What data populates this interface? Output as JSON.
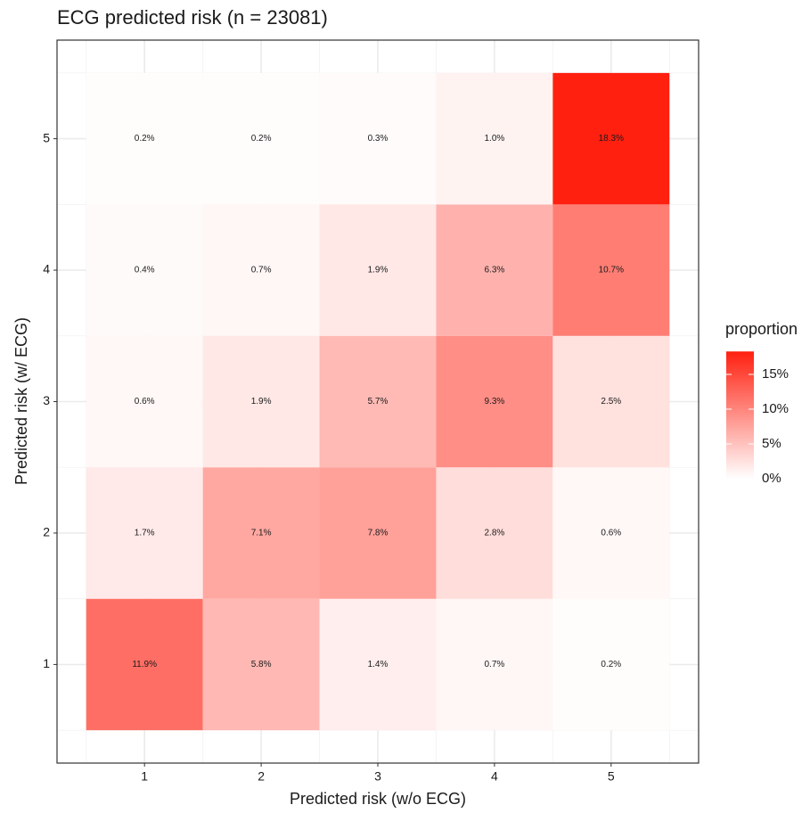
{
  "chart_data": {
    "type": "heatmap",
    "title": "ECG predicted risk (n = 23081)",
    "x_label": "Predicted risk (w/o ECG)",
    "y_label": "Predicted risk (w/ ECG)",
    "x": [
      1,
      2,
      3,
      4,
      5
    ],
    "y": [
      1,
      2,
      3,
      4,
      5
    ],
    "values": [
      [
        11.9,
        5.8,
        1.4,
        0.7,
        0.2
      ],
      [
        1.7,
        7.1,
        7.8,
        2.8,
        0.6
      ],
      [
        0.6,
        1.9,
        5.7,
        9.3,
        2.5
      ],
      [
        0.4,
        0.7,
        1.9,
        6.3,
        10.7
      ],
      [
        0.2,
        0.2,
        0.3,
        1.0,
        18.3
      ]
    ],
    "value_labels": [
      [
        "11.9%",
        "5.8%",
        "1.4%",
        "0.7%",
        "0.2%"
      ],
      [
        "1.7%",
        "7.1%",
        "7.8%",
        "2.8%",
        "0.6%"
      ],
      [
        "0.6%",
        "1.9%",
        "5.7%",
        "9.3%",
        "2.5%"
      ],
      [
        "0.4%",
        "0.7%",
        "1.9%",
        "6.3%",
        "10.7%"
      ],
      [
        "0.2%",
        "0.2%",
        "0.3%",
        "1.0%",
        "18.3%"
      ]
    ],
    "xlim": [
      0.25,
      5.75
    ],
    "ylim": [
      0.25,
      5.75
    ],
    "xticks": [
      1,
      2,
      3,
      4,
      5
    ],
    "yticks": [
      1,
      2,
      3,
      4,
      5
    ],
    "minor_ticks": [
      0.5,
      1.5,
      2.5,
      3.5,
      4.5,
      5.5
    ],
    "grid": true,
    "color_low": "#ffffff",
    "color_high": "#ff2010",
    "legend_title": "proportion",
    "legend_ticks": [
      {
        "value": 0,
        "label": "0%"
      },
      {
        "value": 5,
        "label": "5%"
      },
      {
        "value": 10,
        "label": "10%"
      },
      {
        "value": 15,
        "label": "15%"
      }
    ]
  }
}
